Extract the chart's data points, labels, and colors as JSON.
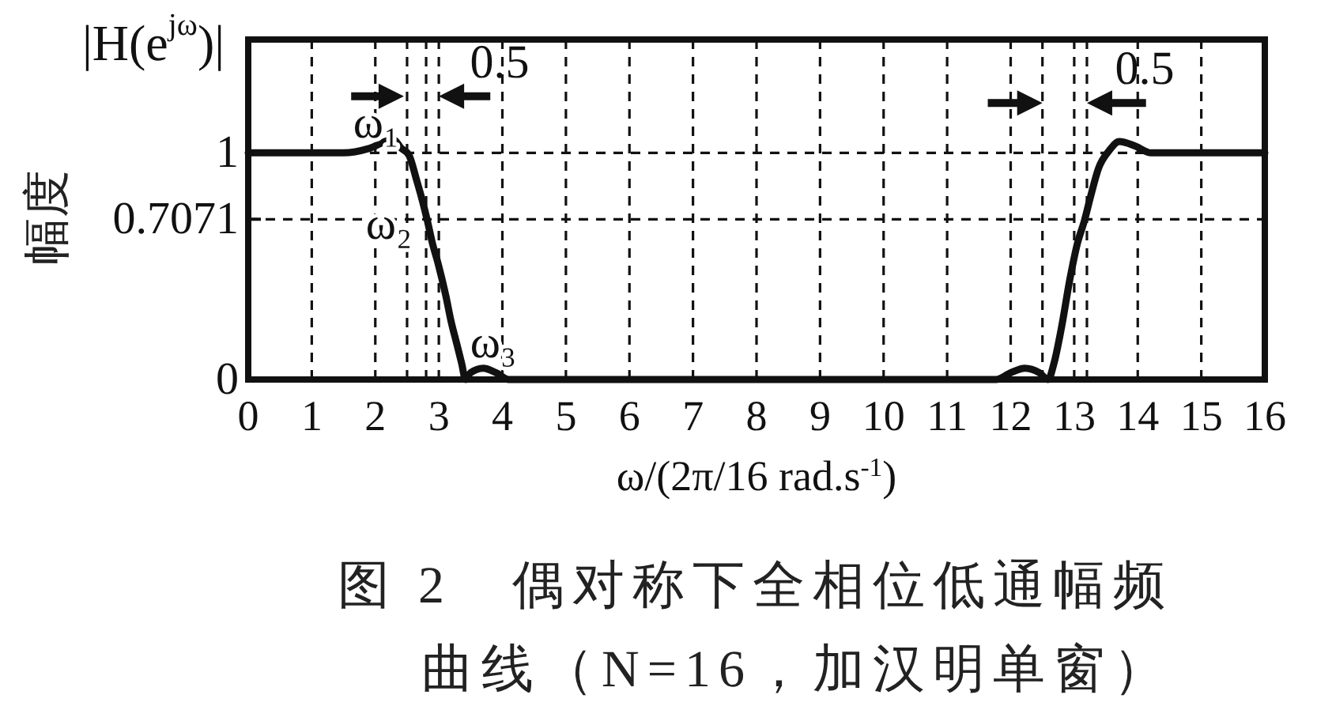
{
  "chart_data": {
    "type": "line",
    "title": "图 2　偶对称下全相位低通幅频曲线（N=16，加汉明单窗）",
    "xlabel": "ω/(2π/16 rad.s$^{-1}$)",
    "ylabel": "幅度",
    "annotations": [
      "|H(e$^{jω}$)|",
      "ω₁",
      "ω₂",
      "ω₃",
      "0.5",
      "0.5"
    ],
    "x": [
      0,
      1.5,
      1.91,
      2.28,
      2.41,
      2.53,
      2.65,
      2.74,
      2.82,
      2.9,
      2.99,
      3.11,
      3.19,
      3.28,
      3.36,
      3.42,
      3.5,
      3.7,
      3.9,
      4.1,
      11.77,
      12.0,
      12.22,
      12.45,
      12.59,
      12.68,
      12.8,
      12.93,
      13.05,
      13.16,
      13.26,
      13.38,
      13.55,
      13.71,
      13.96,
      14.21,
      16
    ],
    "values": [
      1,
      1,
      1.02,
      1.06,
      1.02,
      0.99,
      0.88,
      0.79,
      0.7,
      0.6,
      0.51,
      0.37,
      0.26,
      0.16,
      0.07,
      0,
      0.03,
      0.05,
      0.03,
      0,
      0,
      0.03,
      0.05,
      0.03,
      0,
      0.07,
      0.23,
      0.44,
      0.6,
      0.7,
      0.81,
      0.93,
      1.01,
      1.05,
      1.03,
      1,
      1
    ],
    "color": "#111111",
    "xlim": [
      0,
      16
    ],
    "ylim": [
      0,
      1.5
    ],
    "xticks": [
      0,
      1,
      2,
      3,
      4,
      5,
      6,
      7,
      8,
      9,
      10,
      11,
      12,
      13,
      14,
      15,
      16
    ],
    "yticks": [
      0,
      0.7071,
      1
    ],
    "grid": true,
    "ref_lines": [
      {
        "axis": "x",
        "value": 2.5,
        "line_style": "dashed"
      },
      {
        "axis": "x",
        "value": 2.8,
        "line_style": "dashed"
      },
      {
        "axis": "x",
        "value": 12.5,
        "line_style": "dashed"
      },
      {
        "axis": "x",
        "value": 13.2,
        "line_style": "dashed"
      }
    ]
  }
}
